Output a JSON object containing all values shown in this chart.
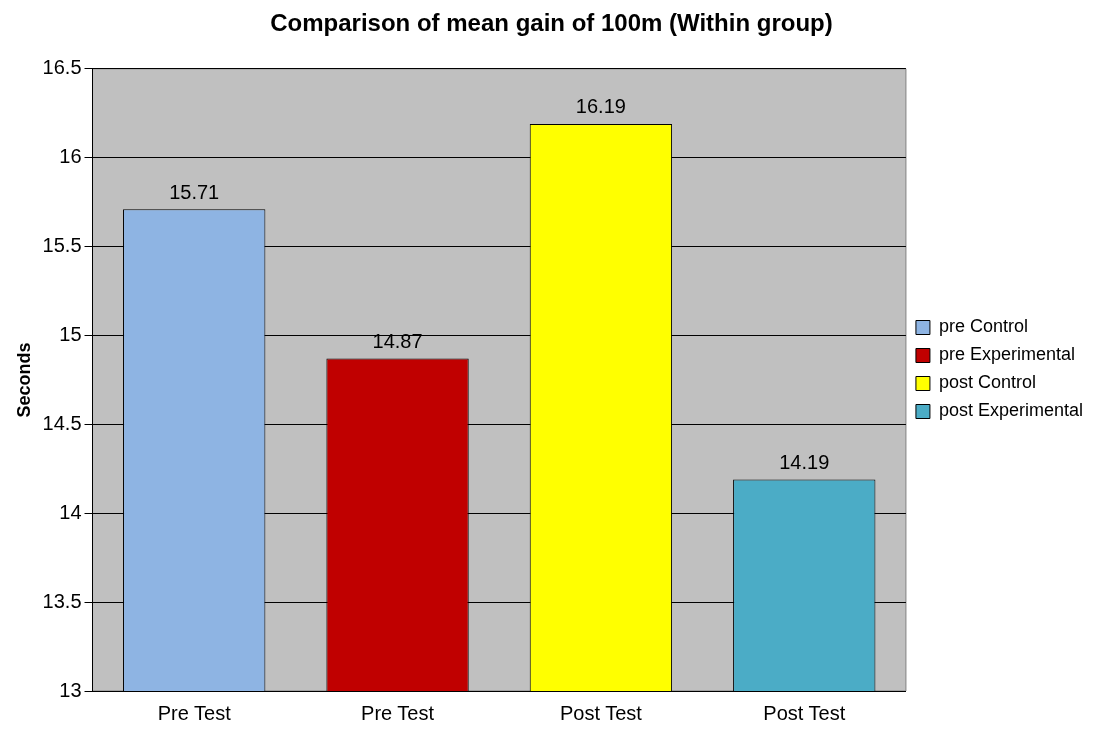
{
  "chart_data": {
    "type": "bar",
    "title": "Comparison of mean gain of 100m (Within group)",
    "ylabel": "Seconds",
    "categories": [
      "Pre Test",
      "Pre Test",
      "Post Test",
      "Post Test"
    ],
    "series": [
      {
        "name": "pre Control",
        "color": "#8eb4e3",
        "values": [
          15.71,
          null,
          null,
          null
        ]
      },
      {
        "name": "pre Experimental",
        "color": "#c00000",
        "values": [
          null,
          14.87,
          null,
          null
        ]
      },
      {
        "name": "post Control",
        "color": "#ffff00",
        "values": [
          null,
          null,
          16.19,
          null
        ]
      },
      {
        "name": "post Experimental",
        "color": "#4bacc6",
        "values": [
          null,
          null,
          null,
          14.19
        ]
      }
    ],
    "ylim": [
      13,
      16.5
    ],
    "yticks": [
      13,
      13.5,
      14,
      14.5,
      15,
      15.5,
      16,
      16.5
    ],
    "grid": "y",
    "legend": "right",
    "data_labels": true
  }
}
